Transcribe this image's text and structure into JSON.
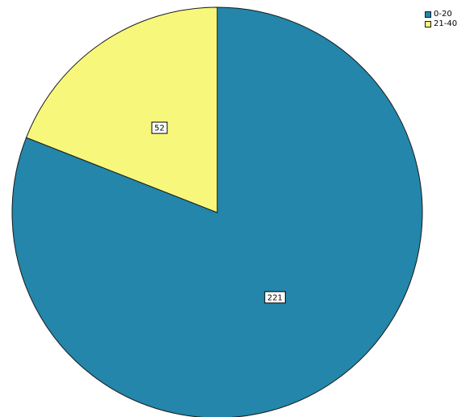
{
  "chart_data": {
    "type": "pie",
    "title": "",
    "categories": [
      "0-20",
      "21-40"
    ],
    "values": [
      221,
      52
    ],
    "colors": [
      "#2386aa",
      "#f7f77b"
    ],
    "data_labels": [
      "221",
      "52"
    ],
    "legend_position": "top-right",
    "start_angle": "12 o'clock",
    "direction": "clockwise"
  }
}
